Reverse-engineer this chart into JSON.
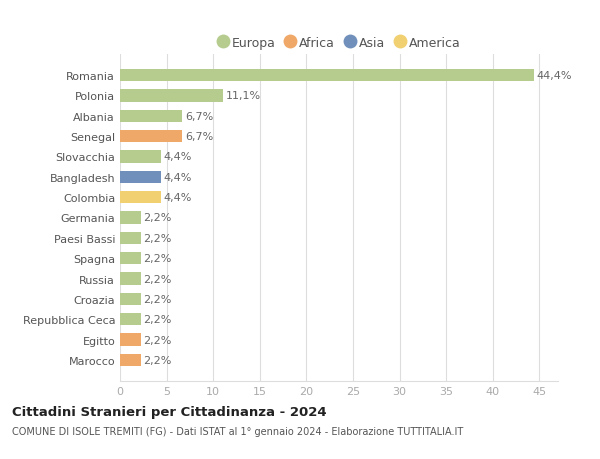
{
  "categories": [
    "Marocco",
    "Egitto",
    "Repubblica Ceca",
    "Croazia",
    "Russia",
    "Spagna",
    "Paesi Bassi",
    "Germania",
    "Colombia",
    "Bangladesh",
    "Slovacchia",
    "Senegal",
    "Albania",
    "Polonia",
    "Romania"
  ],
  "values": [
    2.2,
    2.2,
    2.2,
    2.2,
    2.2,
    2.2,
    2.2,
    2.2,
    4.4,
    4.4,
    4.4,
    6.7,
    6.7,
    11.1,
    44.4
  ],
  "labels": [
    "2,2%",
    "2,2%",
    "2,2%",
    "2,2%",
    "2,2%",
    "2,2%",
    "2,2%",
    "2,2%",
    "4,4%",
    "4,4%",
    "4,4%",
    "6,7%",
    "6,7%",
    "11,1%",
    "44,4%"
  ],
  "colors": [
    "#f0a868",
    "#f0a868",
    "#b5cc8e",
    "#b5cc8e",
    "#b5cc8e",
    "#b5cc8e",
    "#b5cc8e",
    "#b5cc8e",
    "#f0d070",
    "#7090bb",
    "#b5cc8e",
    "#f0a868",
    "#b5cc8e",
    "#b5cc8e",
    "#b5cc8e"
  ],
  "legend_labels": [
    "Europa",
    "Africa",
    "Asia",
    "America"
  ],
  "legend_colors": [
    "#b5cc8e",
    "#f0a868",
    "#7090bb",
    "#f0d070"
  ],
  "xlim": [
    0,
    47
  ],
  "xticks": [
    0,
    5,
    10,
    15,
    20,
    25,
    30,
    35,
    40,
    45
  ],
  "title": "Cittadini Stranieri per Cittadinanza - 2024",
  "subtitle": "COMUNE DI ISOLE TREMITI (FG) - Dati ISTAT al 1° gennaio 2024 - Elaborazione TUTTITALIA.IT",
  "background_color": "#ffffff",
  "bar_height": 0.6,
  "grid_color": "#dddddd",
  "label_fontsize": 8,
  "tick_fontsize": 8,
  "legend_fontsize": 9
}
